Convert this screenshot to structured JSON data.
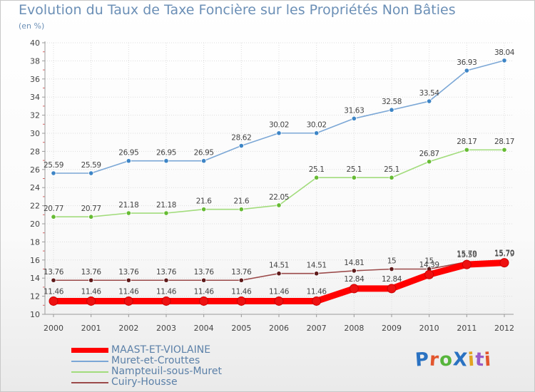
{
  "title": "Evolution du Taux de Taxe Foncière sur les Propriétés Non Bâties",
  "subtitle": "(en %)",
  "logo": {
    "text": "ProXiti",
    "colors": [
      "#2a72c2",
      "#e2552d",
      "#57b53c",
      "#2a72c2",
      "#e2a322",
      "#9a5bc7",
      "#e2552d"
    ]
  },
  "chart_data": {
    "type": "line",
    "title": "Evolution du Taux de Taxe Foncière sur les Propriétés Non Bâties",
    "ylabel": "(en %)",
    "xlabel": "",
    "x": [
      "2000",
      "2001",
      "2002",
      "2003",
      "2004",
      "2005",
      "2006",
      "2007",
      "2008",
      "2009",
      "2010",
      "2011",
      "2012"
    ],
    "ylim": [
      10,
      40
    ],
    "yticks": [
      "10",
      "12",
      "14",
      "16",
      "18",
      "20",
      "22",
      "24",
      "26",
      "28",
      "30",
      "32",
      "34",
      "36",
      "38",
      "40"
    ],
    "grid": true,
    "legend_position": "bottom-left",
    "series": [
      {
        "name": "MAAST-ET-VIOLAINE",
        "color": "#ff0000",
        "marker": "#ee1111",
        "values": [
          11.46,
          11.46,
          11.46,
          11.46,
          11.46,
          11.46,
          11.46,
          11.46,
          12.84,
          12.84,
          14.39,
          15.5,
          15.7
        ],
        "labels": [
          "11.46",
          "11.46",
          "11.46",
          "11.46",
          "11.46",
          "11.46",
          "11.46",
          "11.46",
          "12.84",
          "12.84",
          "14.39",
          "15.50",
          "15.70"
        ]
      },
      {
        "name": "Muret-et-Crouttes",
        "color": "#7ba7d6",
        "marker": "#3d85c6",
        "values": [
          25.59,
          25.59,
          26.95,
          26.95,
          26.95,
          28.62,
          30.02,
          30.02,
          31.63,
          32.58,
          33.54,
          36.93,
          38.04
        ],
        "labels": [
          "25.59",
          "25.59",
          "26.95",
          "26.95",
          "26.95",
          "28.62",
          "30.02",
          "30.02",
          "31.63",
          "32.58",
          "33.54",
          "36.93",
          "38.04"
        ]
      },
      {
        "name": "Nampteuil-sous-Muret",
        "color": "#a2dc7c",
        "marker": "#66bb33",
        "values": [
          20.77,
          20.77,
          21.18,
          21.18,
          21.6,
          21.6,
          22.05,
          25.1,
          25.1,
          25.1,
          26.87,
          28.17,
          28.17
        ],
        "labels": [
          "20.77",
          "20.77",
          "21.18",
          "21.18",
          "21.6",
          "21.6",
          "22.05",
          "25.1",
          "25.1",
          "25.1",
          "26.87",
          "28.17",
          "28.17"
        ]
      },
      {
        "name": "Cuiry-Housse",
        "color": "#9b4a4a",
        "marker": "#5e1a1a",
        "values": [
          13.76,
          13.76,
          13.76,
          13.76,
          13.76,
          13.76,
          14.51,
          14.51,
          14.81,
          15,
          15,
          15.79,
          15.79
        ],
        "labels": [
          "13.76",
          "13.76",
          "13.76",
          "13.76",
          "13.76",
          "13.76",
          "14.51",
          "14.51",
          "14.81",
          "15",
          "15",
          "15.79",
          "15.79"
        ]
      }
    ]
  }
}
